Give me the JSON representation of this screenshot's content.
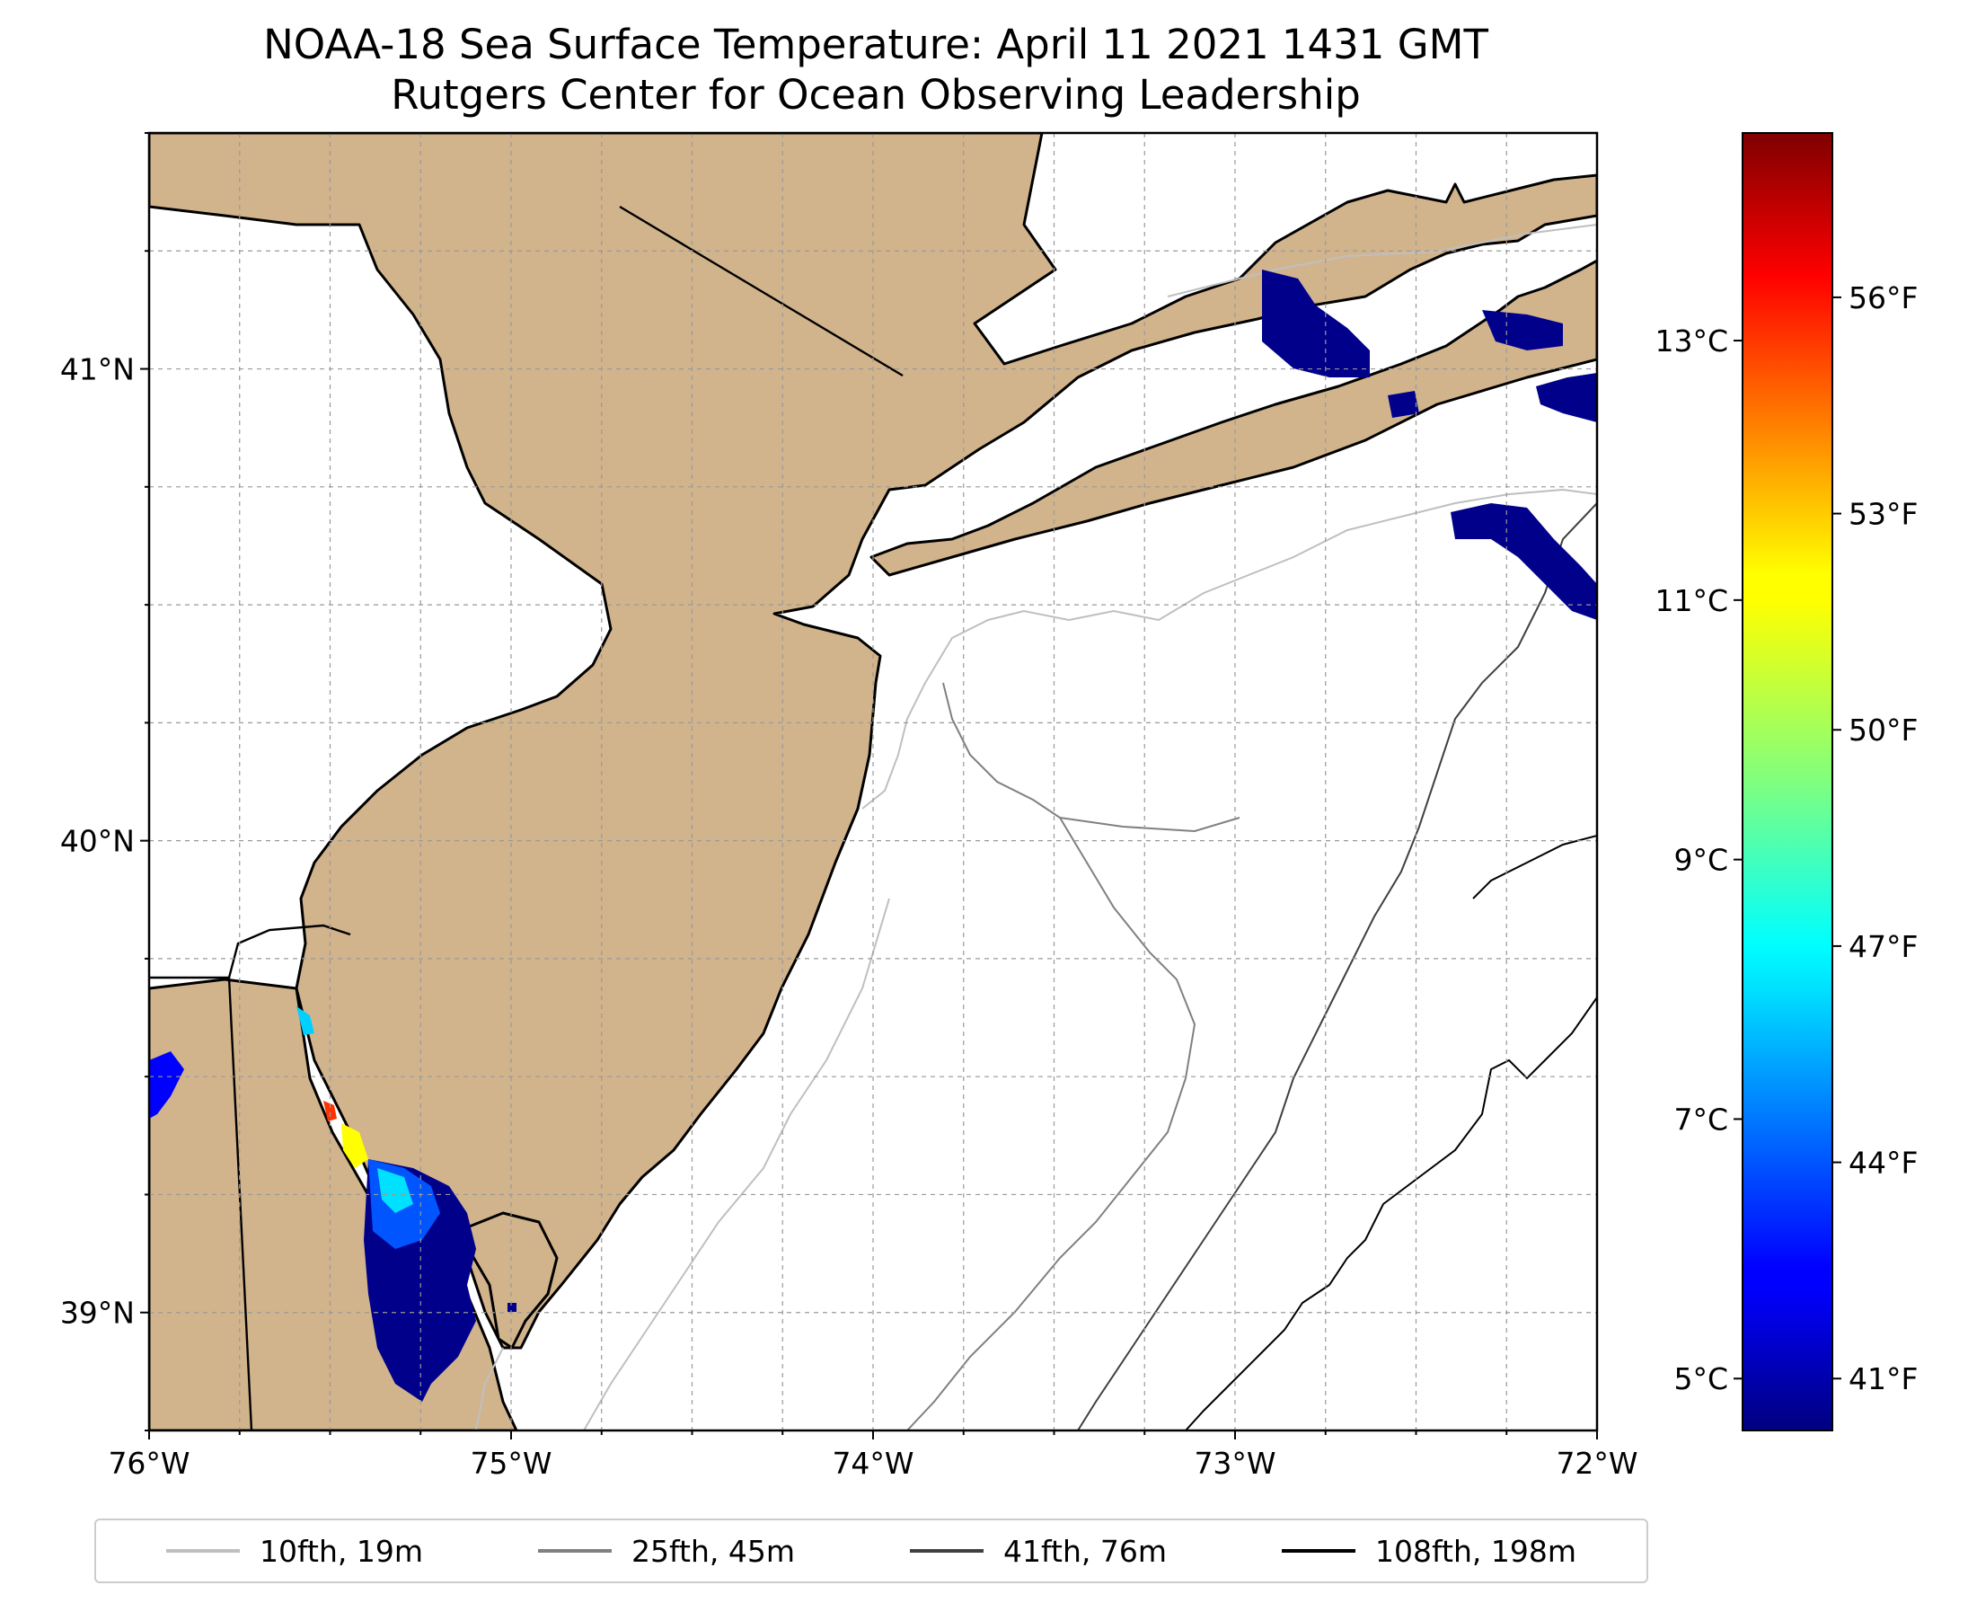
{
  "title": {
    "line1": "NOAA-18 Sea Surface Temperature: April 11 2021 1431 GMT",
    "line2": "Rutgers Center for Ocean Observing Leadership"
  },
  "map": {
    "lon_range": [
      -76,
      -72
    ],
    "lat_range": [
      38.75,
      41.5
    ],
    "x_ticks": [
      "76°W",
      "75°W",
      "74°W",
      "73°W",
      "72°W"
    ],
    "y_ticks": [
      "39°N",
      "40°N",
      "41°N"
    ],
    "grid": true,
    "land_color": "#d2b48c",
    "water_color": "#ffffff"
  },
  "colorbar": {
    "colormap": "jet",
    "celsius_ticks": [
      "5°C",
      "7°C",
      "9°C",
      "11°C",
      "13°C"
    ],
    "fahrenheit_ticks": [
      "41°F",
      "44°F",
      "47°F",
      "50°F",
      "53°F",
      "56°F"
    ],
    "range_c": [
      4.6,
      14.6
    ]
  },
  "legend": [
    {
      "label": "10fth, 19m",
      "color": "#bfbfbf"
    },
    {
      "label": "25fth, 45m",
      "color": "#808080"
    },
    {
      "label": "41fth, 76m",
      "color": "#404040"
    },
    {
      "label": "108fth, 198m",
      "color": "#000000"
    }
  ]
}
